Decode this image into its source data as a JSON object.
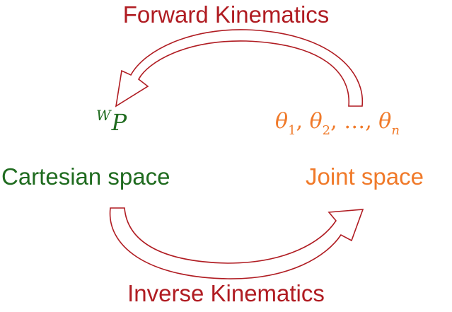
{
  "colors": {
    "kinematics_red": "#b01c22",
    "cartesian_green": "#1f6b1f",
    "joint_orange": "#f07a2a",
    "arrow_stroke": "#b01c22",
    "background": "#ffffff"
  },
  "labels": {
    "forward_kinematics": "Forward Kinematics",
    "inverse_kinematics": "Inverse Kinematics",
    "cartesian_space": "Cartesian space",
    "joint_space": "Joint space"
  },
  "math": {
    "wp_superscript": "W",
    "wp_symbol": "P",
    "theta_symbol": "θ",
    "theta_1_index": "1",
    "theta_2_index": "2",
    "ellipsis": "…",
    "theta_n_index": "n",
    "separator": ", "
  },
  "arrows": {
    "forward": "curved-arrow-right-to-left",
    "inverse": "curved-arrow-left-to-right"
  }
}
